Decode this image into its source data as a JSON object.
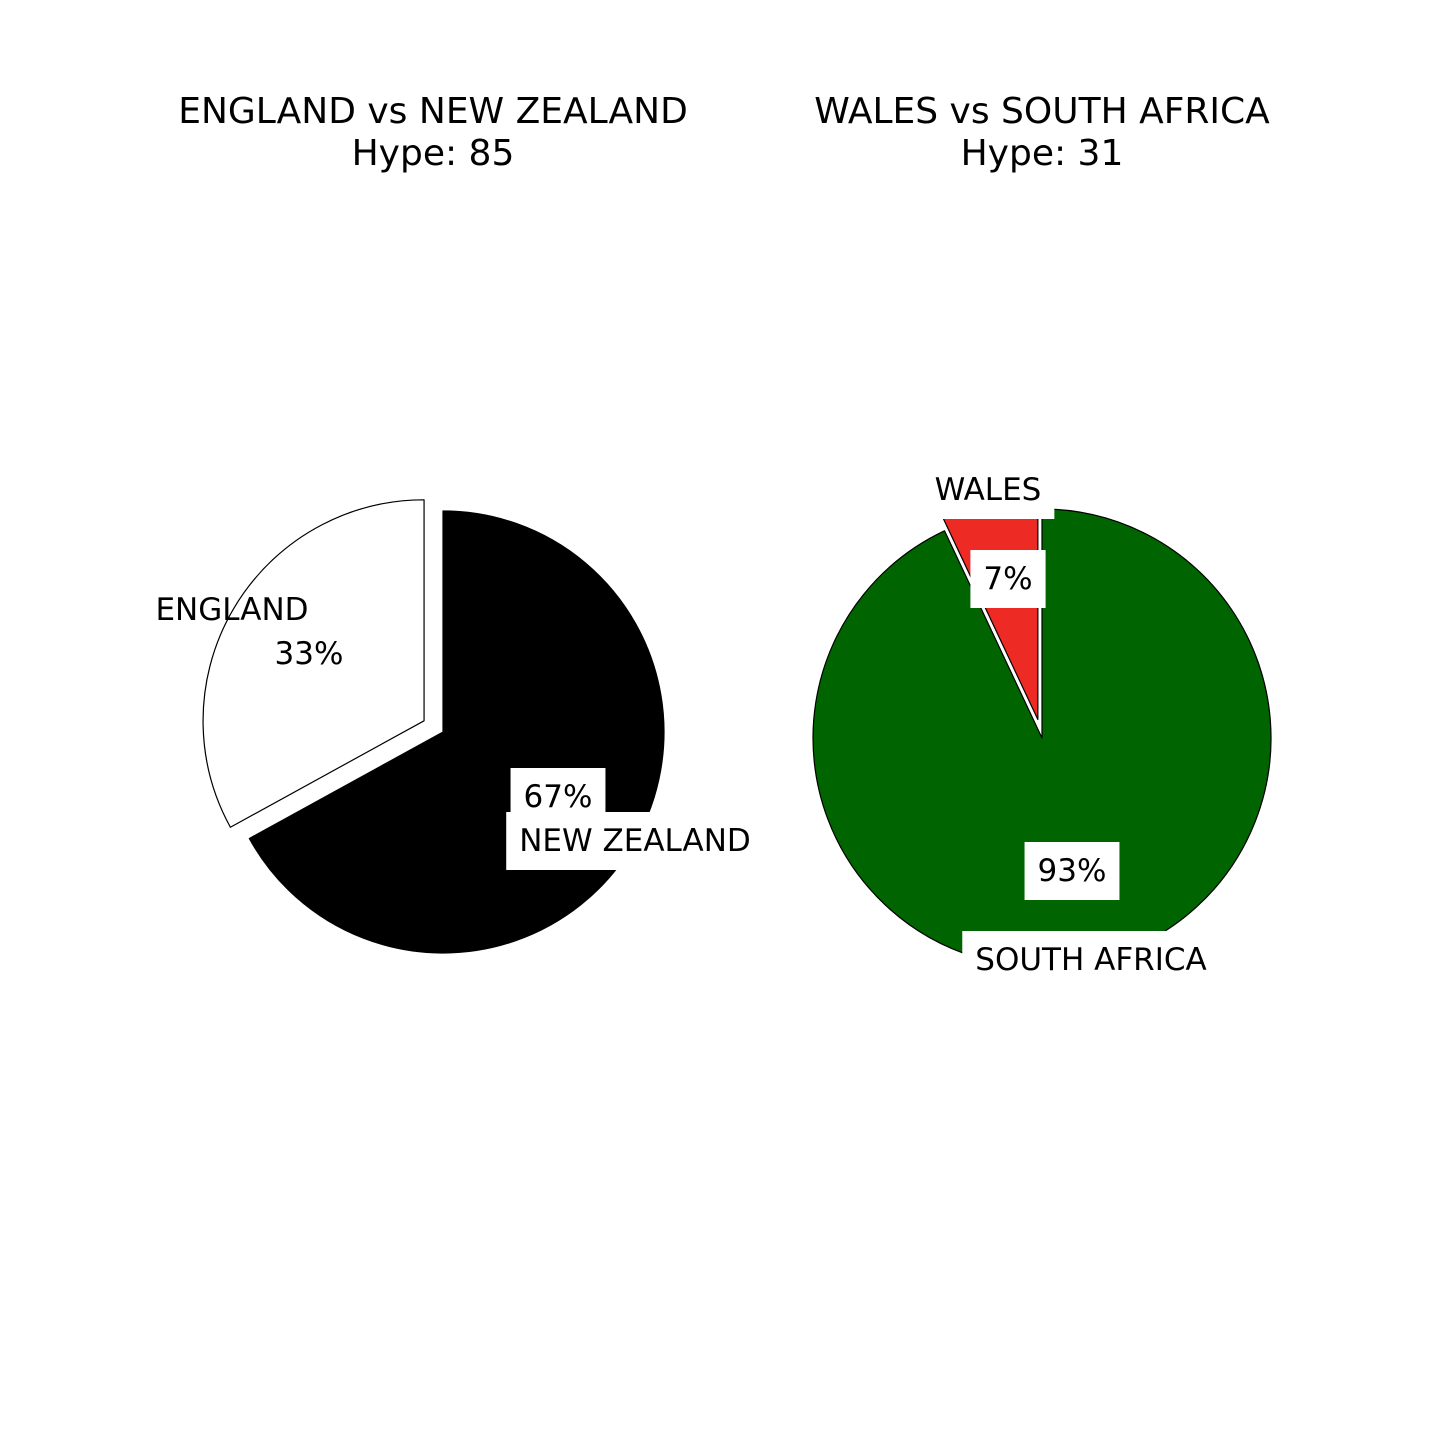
{
  "chart_data": [
    {
      "type": "pie",
      "title": "ENGLAND vs NEW ZEALAND",
      "subtitle": "Hype: 85",
      "slices": [
        {
          "label": "ENGLAND",
          "value": 33,
          "pct_label": "33%",
          "color": "#ffffff",
          "exploded": true
        },
        {
          "label": "NEW ZEALAND",
          "value": 67,
          "pct_label": "67%",
          "color": "#000000",
          "exploded": false
        }
      ]
    },
    {
      "type": "pie",
      "title": "WALES vs SOUTH AFRICA",
      "subtitle": "Hype: 31",
      "slices": [
        {
          "label": "WALES",
          "value": 7,
          "pct_label": "7%",
          "color": "#ee2a24",
          "exploded": true
        },
        {
          "label": "SOUTH AFRICA",
          "value": 93,
          "pct_label": "93%",
          "color": "#006400",
          "exploded": false
        }
      ]
    }
  ]
}
